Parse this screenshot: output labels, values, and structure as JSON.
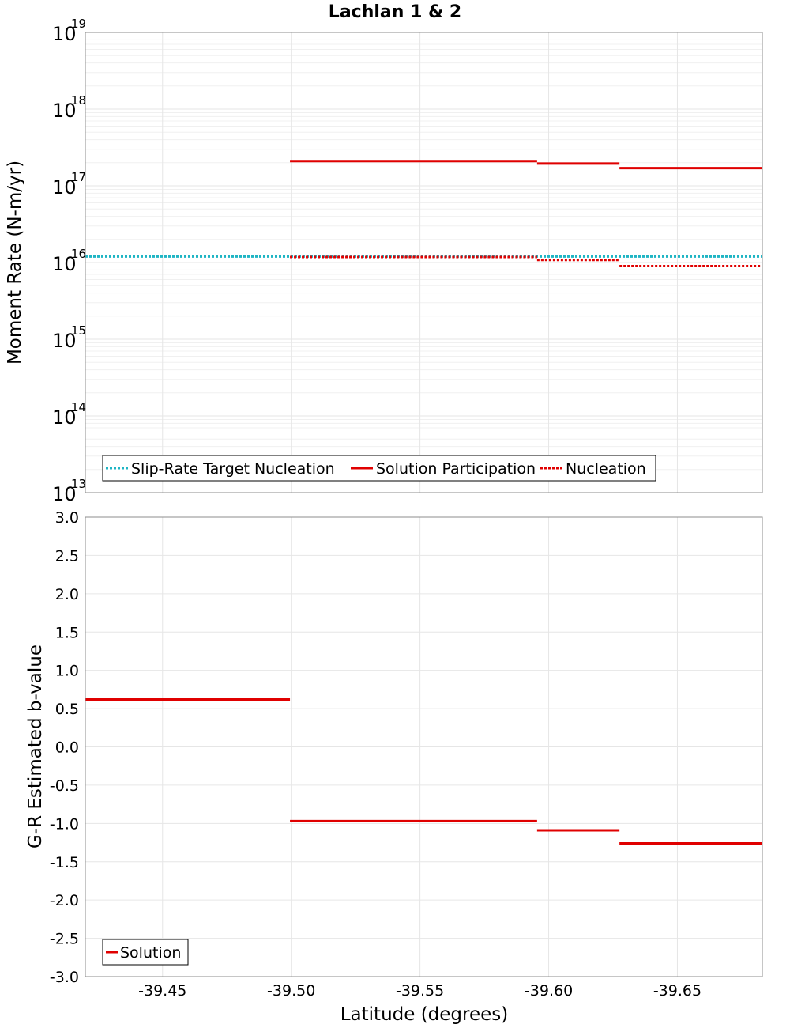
{
  "title": "Lachlan 1 & 2",
  "x_axis": {
    "label": "Latitude (degrees)",
    "range": [
      -39.42,
      -39.683
    ],
    "ticks": [
      -39.45,
      -39.5,
      -39.55,
      -39.6,
      -39.65
    ],
    "tick_labels": [
      "-39.45",
      "-39.50",
      "-39.55",
      "-39.60",
      "-39.65"
    ]
  },
  "chart_data": [
    {
      "type": "line",
      "title": "Lachlan 1 & 2",
      "xlabel": "",
      "ylabel": "Moment Rate (N-m/yr)",
      "yscale": "log",
      "ylim_exp": [
        13,
        19
      ],
      "y_tick_base": "10",
      "y_tick_exponents": [
        "13",
        "14",
        "15",
        "16",
        "17",
        "18",
        "19"
      ],
      "legend": {
        "placement": "bottom-left",
        "entries": [
          "Slip-Rate Target Nucleation",
          "Solution Participation",
          "Nucleation"
        ]
      },
      "series": [
        {
          "name": "Slip-Rate Target Nucleation",
          "style": "dotted",
          "color": "#1fb5c4",
          "segments": [
            {
              "x": [
                -39.42,
                -39.683
              ],
              "y": 1.2e+16
            }
          ]
        },
        {
          "name": "Solution Participation",
          "style": "solid",
          "color": "#e00000",
          "segments": [
            {
              "x": [
                -39.4995,
                -39.5395
              ],
              "y": 2.1e+17
            },
            {
              "x": [
                -39.5395,
                -39.5955
              ],
              "y": 2.1e+17
            },
            {
              "x": [
                -39.5955,
                -39.6275
              ],
              "y": 1.95e+17
            },
            {
              "x": [
                -39.6275,
                -39.683
              ],
              "y": 1.7e+17
            }
          ]
        },
        {
          "name": "Nucleation",
          "style": "dotted",
          "color": "#e00000",
          "segments": [
            {
              "x": [
                -39.4995,
                -39.5395
              ],
              "y": 1.18e+16
            },
            {
              "x": [
                -39.5395,
                -39.5955
              ],
              "y": 1.18e+16
            },
            {
              "x": [
                -39.5955,
                -39.6275
              ],
              "y": 1.08e+16
            },
            {
              "x": [
                -39.6275,
                -39.683
              ],
              "y": 9000000000000000.0
            }
          ]
        }
      ]
    },
    {
      "type": "line",
      "xlabel": "Latitude (degrees)",
      "ylabel": "G-R Estimated b-value",
      "ylim": [
        -3.0,
        3.0
      ],
      "y_ticks": [
        3.0,
        2.5,
        2.0,
        1.5,
        1.0,
        0.5,
        0.0,
        -0.5,
        -1.0,
        -1.5,
        -2.0,
        -2.5,
        -3.0
      ],
      "y_tick_labels": [
        "3.0",
        "2.5",
        "2.0",
        "1.5",
        "1.0",
        "0.5",
        "0.0",
        "-0.5",
        "-1.0",
        "-1.5",
        "-2.0",
        "-2.5",
        "-3.0"
      ],
      "legend": {
        "placement": "bottom-left",
        "entries": [
          "Solution"
        ]
      },
      "series": [
        {
          "name": "Solution",
          "style": "solid",
          "color": "#e00000",
          "segments": [
            {
              "x": [
                -39.42,
                -39.4995
              ],
              "y": 0.62
            },
            {
              "x": [
                -39.4995,
                -39.5955
              ],
              "y": -0.97
            },
            {
              "x": [
                -39.5955,
                -39.6275
              ],
              "y": -1.09
            },
            {
              "x": [
                -39.6275,
                -39.683
              ],
              "y": -1.26
            }
          ]
        }
      ]
    }
  ]
}
